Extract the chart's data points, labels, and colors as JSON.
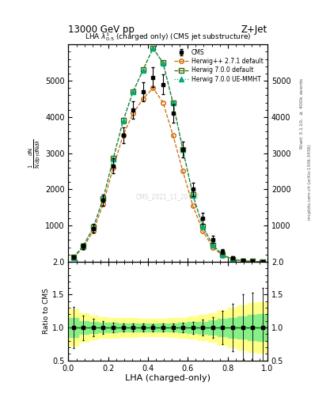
{
  "title_left": "13000 GeV pp",
  "title_right": "Z+Jet",
  "plot_title": "LHA $\\lambda^{1}_{0.5}$ (charged only) (CMS jet substructure)",
  "xlabel": "LHA (charged-only)",
  "ylabel_main": "$\\frac{1}{\\mathrm{N}} \\frac{d\\mathrm{N}}{d\\mathrm{p}_\\mathrm{T}\\, d\\mathrm{N}\\, d\\lambda}$",
  "ylabel_ratio": "Ratio to CMS",
  "right_label_top": "Rivet 3.1.10, $\\geq$ 400k events",
  "right_label_bot": "mcplots.cern.ch [arXiv:1306.3436]",
  "watermark": "CMS_2021_11_20187",
  "xbins": [
    0.0,
    0.05,
    0.1,
    0.15,
    0.2,
    0.25,
    0.3,
    0.35,
    0.4,
    0.45,
    0.5,
    0.55,
    0.6,
    0.65,
    0.7,
    0.75,
    0.8,
    0.85,
    0.9,
    0.95,
    1.0
  ],
  "cms_values": [
    130,
    430,
    920,
    1700,
    2650,
    3500,
    4200,
    4700,
    5100,
    4900,
    4100,
    3100,
    2000,
    1200,
    620,
    280,
    110,
    40,
    15,
    5
  ],
  "cms_errors": [
    40,
    80,
    120,
    160,
    200,
    220,
    240,
    260,
    280,
    270,
    250,
    220,
    180,
    150,
    100,
    70,
    40,
    20,
    8,
    3
  ],
  "hw271_values": [
    110,
    400,
    850,
    1600,
    2600,
    3500,
    4100,
    4500,
    4800,
    4400,
    3500,
    2500,
    1550,
    850,
    400,
    170,
    65,
    22,
    8,
    3
  ],
  "hw700_values": [
    120,
    440,
    950,
    1750,
    2850,
    3900,
    4700,
    5300,
    5900,
    5500,
    4400,
    3100,
    1850,
    980,
    460,
    190,
    72,
    25,
    9,
    3
  ],
  "hw700ue_values": [
    115,
    435,
    940,
    1740,
    2840,
    3890,
    4690,
    5290,
    5890,
    5490,
    4390,
    3090,
    1840,
    970,
    455,
    188,
    70,
    24,
    8,
    3
  ],
  "ratio_band_green_lo": [
    0.86,
    0.9,
    0.92,
    0.93,
    0.93,
    0.94,
    0.94,
    0.94,
    0.94,
    0.94,
    0.94,
    0.93,
    0.92,
    0.91,
    0.89,
    0.87,
    0.85,
    0.83,
    0.81,
    0.8
  ],
  "ratio_band_green_hi": [
    1.14,
    1.1,
    1.08,
    1.07,
    1.07,
    1.06,
    1.06,
    1.06,
    1.06,
    1.06,
    1.06,
    1.07,
    1.08,
    1.09,
    1.11,
    1.13,
    1.15,
    1.17,
    1.19,
    1.2
  ],
  "ratio_band_yellow_lo": [
    0.72,
    0.78,
    0.82,
    0.84,
    0.85,
    0.86,
    0.86,
    0.87,
    0.87,
    0.87,
    0.86,
    0.85,
    0.83,
    0.81,
    0.78,
    0.74,
    0.7,
    0.66,
    0.63,
    0.62
  ],
  "ratio_band_yellow_hi": [
    1.28,
    1.22,
    1.18,
    1.16,
    1.15,
    1.14,
    1.14,
    1.13,
    1.13,
    1.13,
    1.14,
    1.15,
    1.17,
    1.19,
    1.22,
    1.26,
    1.3,
    1.34,
    1.37,
    1.38
  ],
  "color_cms": "#000000",
  "color_hw271": "#cc6600",
  "color_hw700": "#336600",
  "color_hw700ue": "#00aa77",
  "ylim_main": [
    0,
    6000
  ],
  "ylim_ratio": [
    0.5,
    2.0
  ],
  "yticks_main": [
    1000,
    2000,
    3000,
    4000,
    5000
  ],
  "yticks_ratio": [
    0.5,
    1.0,
    1.5,
    2.0
  ]
}
